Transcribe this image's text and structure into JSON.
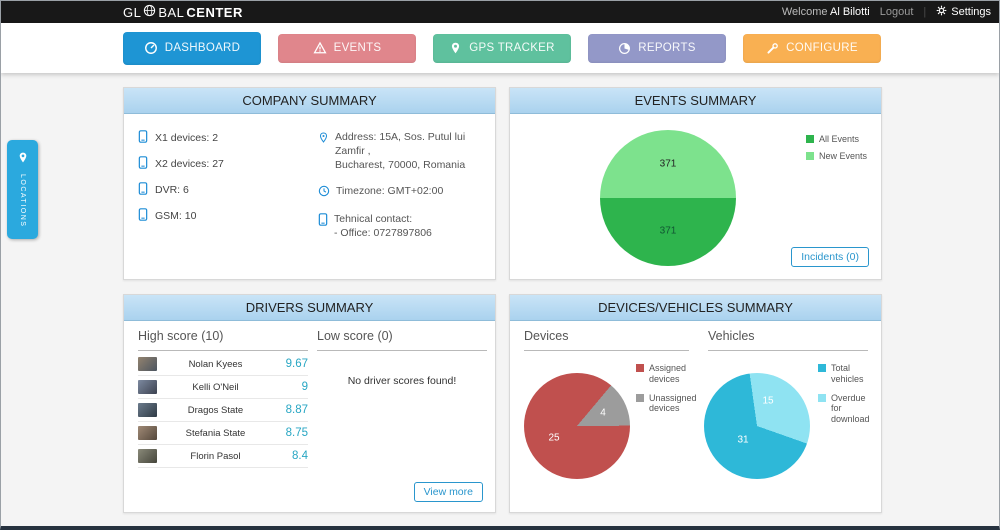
{
  "topbar": {
    "logo": {
      "part1": "GL",
      "part2": "BAL",
      "part3": "CENTER"
    },
    "welcome_label": "Welcome",
    "user_name": "Al Bilotti",
    "logout_label": "Logout",
    "settings_label": "Settings"
  },
  "nav": {
    "tabs": [
      {
        "label": "DASHBOARD",
        "color": "#1e95d4",
        "active": true
      },
      {
        "label": "EVENTS",
        "color": "#e0868c",
        "active": false
      },
      {
        "label": "GPS TRACKER",
        "color": "#5fc19e",
        "active": false
      },
      {
        "label": "REPORTS",
        "color": "#9398c8",
        "active": false
      },
      {
        "label": "CONFIGURE",
        "color": "#f9b052",
        "active": false
      }
    ]
  },
  "locations_tab": {
    "label": "LOCATIONS",
    "color": "#2ba9de"
  },
  "panels": {
    "company": {
      "title": "COMPANY SUMMARY",
      "device_counts": [
        "X1 devices: 2",
        "X2 devices: 27",
        "DVR: 6",
        "GSM: 10"
      ],
      "address_line1": "Address: 15A, Sos. Putul lui Zamfir ,",
      "address_line2": "Bucharest, 70000, Romania",
      "timezone": "Timezone: GMT+02:00",
      "contact_title": "Tehnical contact:",
      "contact_office": "- Office: 0727897806"
    },
    "events": {
      "title": "EVENTS SUMMARY",
      "incidents_button": "Incidents (0)",
      "chart": {
        "type": "pie",
        "start_deg": 90,
        "slices": [
          {
            "name": "All Events",
            "value": 371,
            "color": "#2eb44d"
          },
          {
            "name": "New Events",
            "value": 371,
            "color": "#7de28d"
          }
        ]
      }
    },
    "drivers": {
      "title": "DRIVERS SUMMARY",
      "high_header": "High score (10)",
      "low_header": "Low score (0)",
      "high_rows": [
        {
          "name": "Nolan Kyees",
          "score": "9.67"
        },
        {
          "name": "Kelli O'Neil",
          "score": "9"
        },
        {
          "name": "Dragos State",
          "score": "8.87"
        },
        {
          "name": "Stefania State",
          "score": "8.75"
        },
        {
          "name": "Florin Pasol",
          "score": "8.4"
        }
      ],
      "low_empty_text": "No driver scores found!",
      "view_more_button": "View more"
    },
    "devices_vehicles": {
      "title": "DEVICES/VEHICLES SUMMARY",
      "devices_header": "Devices",
      "vehicles_header": "Vehicles",
      "devices_chart": {
        "type": "pie",
        "start_deg": 40,
        "slices": [
          {
            "name": "Unassigned devices",
            "value": 4,
            "color": "#9c9c9c"
          },
          {
            "name": "Assigned devices",
            "value": 25,
            "color": "#c0504e"
          }
        ]
      },
      "devices_legend": [
        {
          "label": "Assigned devices",
          "color": "#c0504e"
        },
        {
          "label": "Unassigned devices",
          "color": "#9c9c9c"
        }
      ],
      "vehicles_chart": {
        "type": "pie",
        "start_deg": 352,
        "slices": [
          {
            "name": "Overdue for download",
            "value": 15,
            "color": "#8fe3f2"
          },
          {
            "name": "Total vehicles",
            "value": 31,
            "color": "#2eb8d8"
          }
        ]
      },
      "vehicles_legend": [
        {
          "label": "Total vehicles",
          "color": "#2eb8d8"
        },
        {
          "label": "Overdue for download",
          "color": "#8fe3f2"
        }
      ]
    }
  }
}
